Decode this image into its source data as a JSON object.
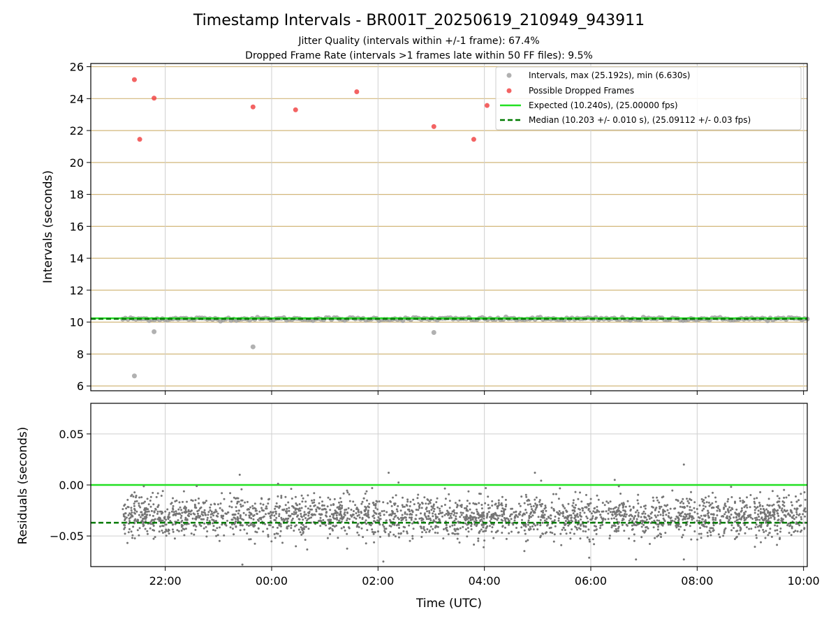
{
  "chart_data": [
    {
      "type": "scatter",
      "title": "Timestamp Intervals - BR001T_20250619_210949_943911",
      "subtitle_lines": [
        "Jitter Quality (intervals within +/-1 frame): 67.4%",
        "Dropped Frame Rate (intervals >1 frames late within 50 FF files): 9.5%"
      ],
      "xlabel": "",
      "ylabel": "Intervals (seconds)",
      "xlim": [
        -3.4,
        10.07
      ],
      "ylim": [
        5.7,
        26.2
      ],
      "x_unit_note": "hours relative to 00:00 UTC on 2025-06-20",
      "yticks": [
        6,
        8,
        10,
        12,
        14,
        16,
        18,
        20,
        22,
        24,
        26
      ],
      "xticks": [
        -2,
        0,
        2,
        4,
        6,
        8,
        10
      ],
      "xtick_labels": [
        "22:00",
        "00:00",
        "02:00",
        "04:00",
        "06:00",
        "08:00",
        "10:00"
      ],
      "grid": true,
      "legend_position": "top-right",
      "colors": {
        "intervals": "#9e9e9e",
        "dropped": "#f03c3c",
        "expected": "#22e022",
        "median": "#007a00",
        "ygrid": "#d2b77a",
        "xgrid": "#cfcfcf"
      },
      "legend": [
        {
          "key": "intervals",
          "label": "Intervals, max (25.192s), min (6.630s)",
          "marker": "dot"
        },
        {
          "key": "dropped",
          "label": "Possible Dropped Frames",
          "marker": "dot"
        },
        {
          "key": "expected",
          "label": "Expected (10.240s), (25.00000 fps)",
          "marker": "line"
        },
        {
          "key": "median",
          "label": "Median (10.203 +/- 0.010 s), (25.09112 +/- 0.03 fps)",
          "marker": "dash"
        }
      ],
      "expected_value": 10.24,
      "median_value": 10.203,
      "intervals_dense_range": {
        "x_start": -2.8,
        "x_end": 10.07,
        "y_center": 10.2,
        "y_spread": 0.05
      },
      "intervals_outliers": [
        {
          "x": -2.58,
          "y": 6.63
        },
        {
          "x": -2.21,
          "y": 9.4
        },
        {
          "x": -0.35,
          "y": 8.45
        },
        {
          "x": 3.05,
          "y": 9.35
        }
      ],
      "dropped_frames": [
        {
          "x": -2.58,
          "y": 25.19
        },
        {
          "x": -2.48,
          "y": 21.45
        },
        {
          "x": -2.21,
          "y": 24.03
        },
        {
          "x": -0.35,
          "y": 23.48
        },
        {
          "x": 0.45,
          "y": 23.3
        },
        {
          "x": 1.6,
          "y": 24.43
        },
        {
          "x": 3.05,
          "y": 22.25
        },
        {
          "x": 3.8,
          "y": 21.45
        },
        {
          "x": 4.05,
          "y": 23.57
        }
      ]
    },
    {
      "type": "scatter",
      "xlabel": "Time (UTC)",
      "ylabel": "Residuals (seconds)",
      "xlim": [
        -3.4,
        10.07
      ],
      "ylim": [
        -0.08,
        0.08
      ],
      "yticks": [
        -0.05,
        0.0,
        0.05
      ],
      "ytick_labels": [
        "−0.05",
        "0.00",
        "0.05"
      ],
      "xticks": [
        -2,
        0,
        2,
        4,
        6,
        8,
        10
      ],
      "xtick_labels": [
        "22:00",
        "00:00",
        "02:00",
        "04:00",
        "06:00",
        "08:00",
        "10:00"
      ],
      "grid": true,
      "expected_value": 0.0,
      "median_value": -0.037,
      "residuals_cloud": {
        "x_start": -2.8,
        "x_end": 10.07,
        "center": -0.031,
        "spread": 0.01,
        "count": 2600
      },
      "residual_spikes": [
        {
          "x": -0.6,
          "y": 0.01
        },
        {
          "x": -0.55,
          "y": -0.078
        },
        {
          "x": 2.2,
          "y": 0.012
        },
        {
          "x": 2.1,
          "y": -0.075
        },
        {
          "x": 4.95,
          "y": 0.012
        },
        {
          "x": 6.45,
          "y": 0.005
        },
        {
          "x": 7.75,
          "y": 0.02
        },
        {
          "x": 7.75,
          "y": -0.073
        },
        {
          "x": 6.85,
          "y": -0.073
        }
      ]
    }
  ]
}
